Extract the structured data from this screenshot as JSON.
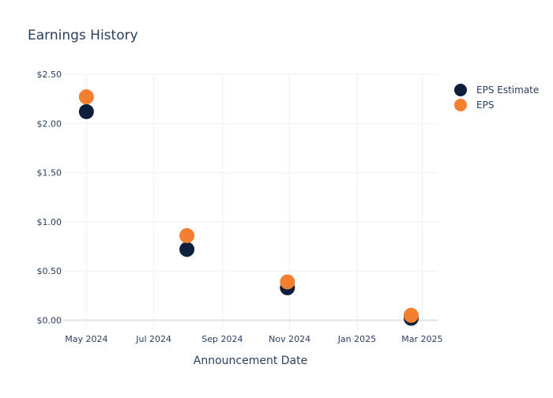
{
  "chart_data": {
    "type": "scatter",
    "title": "Earnings History",
    "xlabel": "Announcement Date",
    "ylabel": "",
    "x_ticks": [
      "May 2024",
      "Jul 2024",
      "Sep 2024",
      "Nov 2024",
      "Jan 2025",
      "Mar 2025"
    ],
    "y_ticks": [
      "$0.00",
      "$0.50",
      "$1.00",
      "$1.50",
      "$2.00",
      "$2.50"
    ],
    "xlim": [
      "2024-04-10",
      "2025-03-15"
    ],
    "ylim": [
      -0.1,
      2.5
    ],
    "grid": true,
    "legend": "top-right",
    "x": [
      "2024-05-01",
      "2024-07-31",
      "2024-10-30",
      "2025-02-19"
    ],
    "series": [
      {
        "name": "EPS Estimate",
        "color": "#0d1f3c",
        "values": [
          2.12,
          0.72,
          0.33,
          0.02
        ]
      },
      {
        "name": "EPS",
        "color": "#f47f30",
        "values": [
          2.27,
          0.86,
          0.39,
          0.05
        ]
      }
    ]
  }
}
